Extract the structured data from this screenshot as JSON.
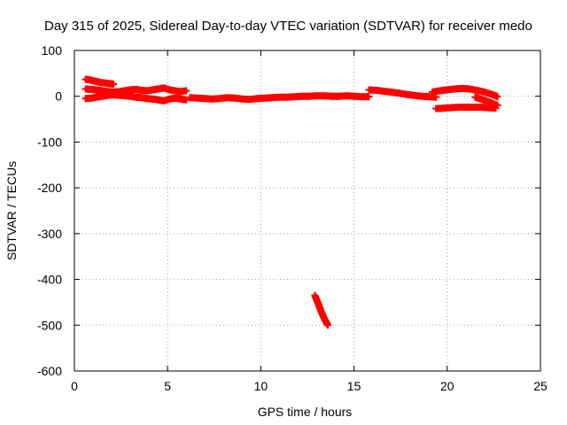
{
  "chart_data": {
    "type": "scatter",
    "title": "Day 315 of 2025, Sidereal Day-to-day VTEC variation (SDTVAR) for receiver medo",
    "xlabel": "GPS time / hours",
    "ylabel": "SDTVAR / TECUs",
    "xlim": [
      0,
      25
    ],
    "ylim": [
      -600,
      100
    ],
    "xticks": [
      0,
      5,
      10,
      15,
      20,
      25
    ],
    "yticks": [
      100,
      0,
      -100,
      -200,
      -300,
      -400,
      -500,
      -600
    ],
    "grid": true,
    "marker": "+",
    "color": "#ff0000",
    "series": [
      {
        "name": "upper-left-track",
        "x": [
          0.6,
          0.8,
          1.0,
          1.2,
          1.4,
          1.6,
          1.8,
          2.0,
          2.1
        ],
        "y": [
          37,
          36,
          34,
          32,
          30,
          29,
          28,
          27,
          26
        ]
      },
      {
        "name": "main-band-top",
        "x": [
          0.6,
          0.9,
          1.2,
          1.5,
          1.8,
          2.1,
          2.4,
          2.7,
          3.0,
          3.3,
          3.6,
          3.9,
          4.2,
          4.5,
          4.8,
          5.1,
          5.4,
          5.7,
          6.0
        ],
        "y": [
          16,
          15,
          14,
          12,
          10,
          9,
          10,
          12,
          14,
          15,
          13,
          12,
          14,
          16,
          18,
          14,
          12,
          10,
          12
        ]
      },
      {
        "name": "main-band-bottom",
        "x": [
          0.6,
          0.9,
          1.2,
          1.5,
          1.8,
          2.1,
          2.4,
          2.7,
          3.0,
          3.3,
          3.6,
          3.9,
          4.2,
          4.5,
          4.8,
          5.1,
          5.4,
          5.7,
          6.0
        ],
        "y": [
          -5,
          -4,
          -2,
          0,
          2,
          3,
          2,
          1,
          0,
          -2,
          -3,
          -5,
          -6,
          -8,
          -10,
          -6,
          -4,
          -6,
          -8
        ]
      },
      {
        "name": "central-track",
        "x": [
          6.2,
          6.6,
          7.0,
          7.4,
          7.8,
          8.2,
          8.6,
          9.0,
          9.4,
          9.8,
          10.2,
          10.6,
          11.0,
          11.4,
          11.8,
          12.2,
          12.6,
          13.0,
          13.4,
          13.8,
          14.2,
          14.6,
          15.0,
          15.4,
          15.8
        ],
        "y": [
          -3,
          -4,
          -5,
          -6,
          -5,
          -3,
          -4,
          -6,
          -7,
          -5,
          -4,
          -3,
          -2,
          -2,
          -1,
          0,
          0,
          1,
          1,
          0,
          0,
          1,
          0,
          -1,
          -1
        ]
      },
      {
        "name": "right-track",
        "x": [
          15.8,
          16.2,
          16.6,
          17.0,
          17.4,
          17.8,
          18.2,
          18.6,
          19.0,
          19.4
        ],
        "y": [
          14,
          13,
          11,
          9,
          7,
          4,
          2,
          0,
          -1,
          -2
        ]
      },
      {
        "name": "far-right-loop-upper",
        "x": [
          19.2,
          19.6,
          20.0,
          20.4,
          20.8,
          21.2,
          21.6,
          22.0,
          22.4,
          22.7
        ],
        "y": [
          9,
          12,
          14,
          16,
          17,
          16,
          13,
          9,
          4,
          -1
        ]
      },
      {
        "name": "far-right-loop-lower",
        "x": [
          19.4,
          19.8,
          20.2,
          20.6,
          21.0,
          21.4,
          21.8,
          22.2,
          22.6
        ],
        "y": [
          -27,
          -26,
          -25,
          -24,
          -24,
          -24,
          -24,
          -25,
          -26
        ]
      },
      {
        "name": "far-right-inner",
        "x": [
          21.5,
          21.8,
          22.1,
          22.4,
          22.7
        ],
        "y": [
          -2,
          -6,
          -10,
          -15,
          -20
        ]
      },
      {
        "name": "outlier-arc",
        "x": [
          12.9,
          13.0,
          13.1,
          13.2,
          13.3,
          13.4,
          13.5,
          13.6
        ],
        "y": [
          -435,
          -445,
          -455,
          -466,
          -476,
          -485,
          -493,
          -500
        ]
      }
    ]
  }
}
